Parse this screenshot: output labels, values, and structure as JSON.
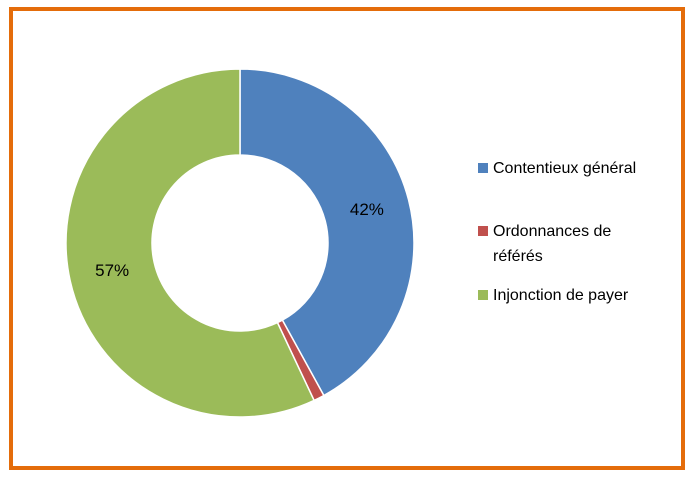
{
  "chart_data": {
    "type": "donut",
    "categories": [
      "Contentieux général",
      "Ordonnances de référés",
      "Injonction de payer"
    ],
    "values": [
      42,
      1,
      57
    ],
    "value_labels": [
      "42%",
      null,
      "57%"
    ],
    "colors": [
      "#4f81bd",
      "#c0504d",
      "#9bbb59"
    ],
    "legend": "right"
  }
}
